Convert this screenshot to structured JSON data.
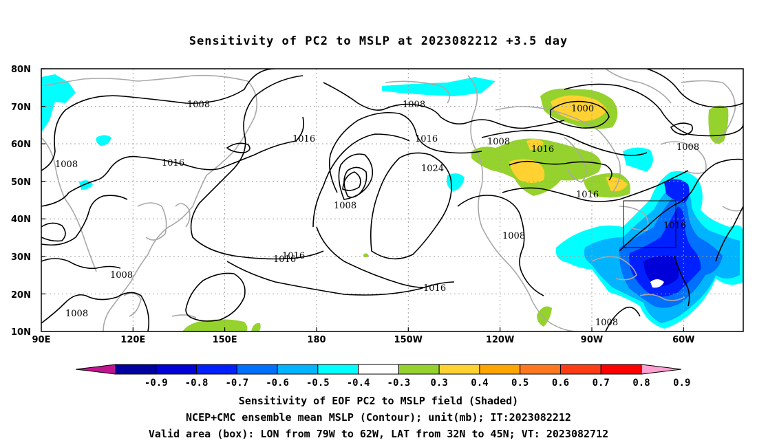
{
  "title": "Sensitivity of PC2 to MSLP at 2023082212 +3.5 day",
  "map": {
    "lat_labels": [
      "80N",
      "70N",
      "60N",
      "50N",
      "40N",
      "30N",
      "20N",
      "10N"
    ],
    "lon_labels": [
      "90E",
      "120E",
      "150E",
      "180",
      "150W",
      "120W",
      "90W",
      "60W"
    ],
    "contour_labels": [
      {
        "text": "1008",
        "kind": "isobar"
      },
      {
        "text": "1008",
        "kind": "isobar"
      },
      {
        "text": "1016",
        "kind": "isobar"
      },
      {
        "text": "1016",
        "kind": "isobar"
      },
      {
        "text": "1008",
        "kind": "isobar"
      },
      {
        "text": "1016",
        "kind": "isobar"
      },
      {
        "text": "1024",
        "kind": "isobar"
      },
      {
        "text": "1008",
        "kind": "isobar"
      },
      {
        "text": "1016",
        "kind": "isobar"
      },
      {
        "text": "1016",
        "kind": "isobar"
      },
      {
        "text": "1008",
        "kind": "isobar"
      },
      {
        "text": "1008",
        "kind": "isobar"
      },
      {
        "text": "1016",
        "kind": "isobar"
      },
      {
        "text": "1000",
        "kind": "isobar"
      },
      {
        "text": "1016",
        "kind": "isobar"
      },
      {
        "text": "1016",
        "kind": "isobar"
      },
      {
        "text": "1008",
        "kind": "isobar"
      },
      {
        "text": "1008",
        "kind": "isobar"
      },
      {
        "text": "1008",
        "kind": "isobar"
      },
      {
        "text": "1016",
        "kind": "isobar"
      }
    ],
    "box": {
      "lon_from": "79W",
      "lon_to": "62W",
      "lat_from": "32N",
      "lat_to": "45N"
    }
  },
  "colorbar": {
    "labels": [
      "-0.9",
      "-0.8",
      "-0.7",
      "-0.6",
      "-0.5",
      "-0.4",
      "-0.3",
      "0.3",
      "0.4",
      "0.5",
      "0.6",
      "0.7",
      "0.8",
      "0.9"
    ],
    "colors": [
      "#c0158f",
      "#0000a0",
      "#0000d8",
      "#0020ff",
      "#0070ff",
      "#00b4ff",
      "#00ffff",
      "#ffffff",
      "#96d22d",
      "#ffd232",
      "#ffa500",
      "#ff7820",
      "#ff3c14",
      "#ff0000",
      "#ffa0d2"
    ]
  },
  "captions": {
    "line1": "Sensitivity of EOF PC2 to MSLP field (Shaded)",
    "line2": "NCEP+CMC ensemble mean MSLP (Contour); unit(mb); IT:2023082212",
    "line3": "Valid area (box): LON from 79W to 62W, LAT from 32N to 45N; VT: 2023082712"
  },
  "colors": {
    "coast": "#a8a8a8",
    "contour": "#000000",
    "green": "#96d22d",
    "yellow": "#ffd232",
    "orange": "#f5a623",
    "cyan": "#00ffff",
    "lightblue": "#00c8ff",
    "blue": "#0070ff",
    "darkblue": "#0020ff",
    "navy": "#0000d8"
  }
}
